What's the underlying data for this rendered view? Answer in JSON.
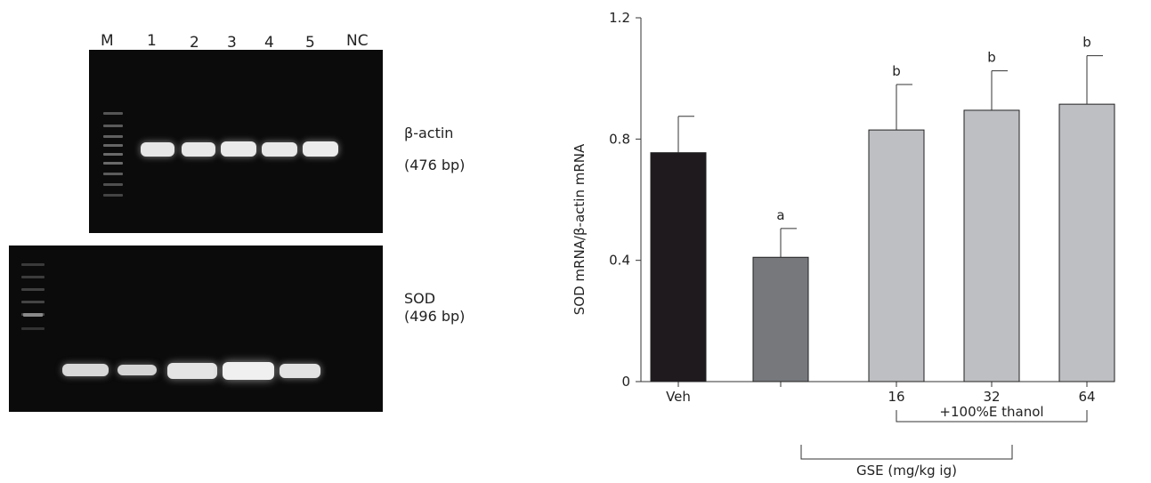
{
  "gel": {
    "lanes": [
      "M",
      "1",
      "2",
      "3",
      "4",
      "5",
      "NC"
    ],
    "top_label": "β-actin",
    "top_size": "(476 bp)",
    "bottom_label": "SOD",
    "bottom_size": "(496 bp)"
  },
  "chart_data": {
    "type": "bar",
    "categories": [
      "Veh",
      "",
      "16",
      "32",
      "64"
    ],
    "values": [
      0.755,
      0.41,
      0.83,
      0.895,
      0.915
    ],
    "errors": [
      0.12,
      0.095,
      0.15,
      0.13,
      0.16
    ],
    "significance": [
      "",
      "a",
      "b",
      "b",
      "b"
    ],
    "bar_colors": [
      "#1e1a1d",
      "#76787c",
      "#bdbfc2",
      "#bdbfc2",
      "#bdbfc2"
    ],
    "title": "",
    "xlabel": "",
    "ylabel": "SOD mRNA/β-actin mRNA",
    "ylim": [
      0,
      1.2
    ],
    "yticks": [
      "0",
      "0.4",
      "0.8",
      "1.2"
    ],
    "bracket_ethanol": "+100%E thanol",
    "bracket_gse": "GSE (mg/kg ig)",
    "grid": false,
    "legend": "none"
  }
}
